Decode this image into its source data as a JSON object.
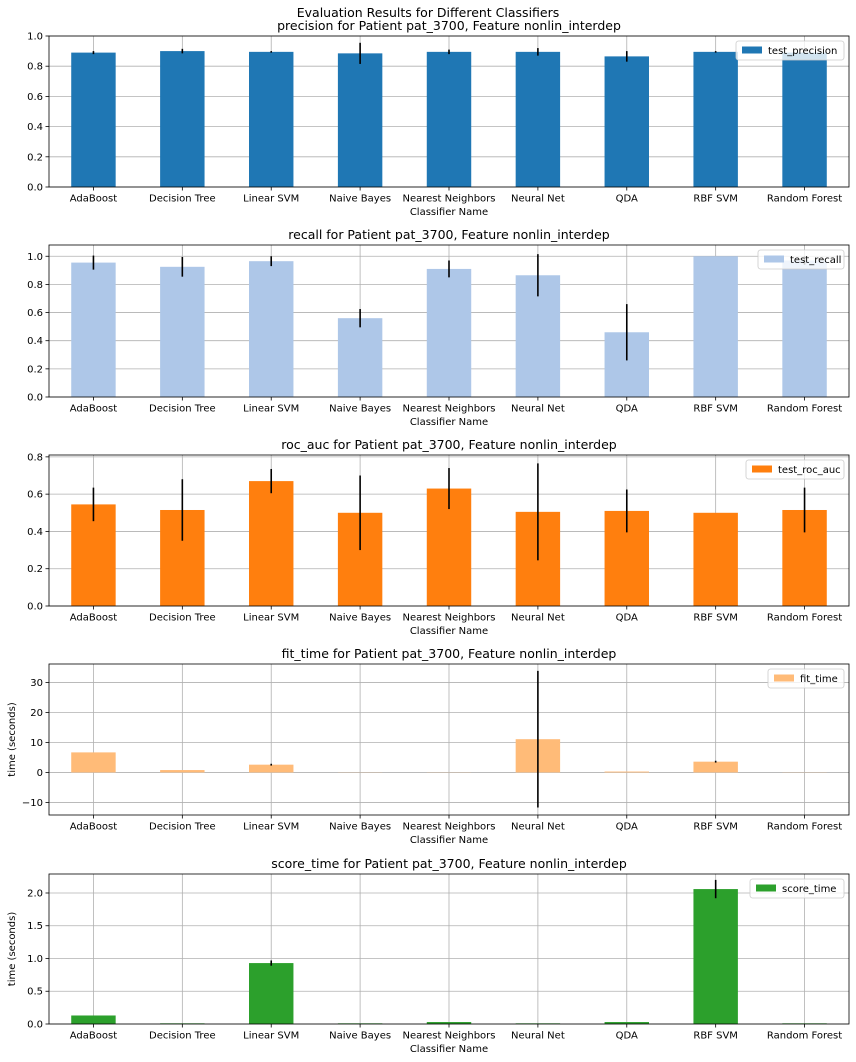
{
  "suptitle": "Evaluation Results for Different Classifiers",
  "colors": {
    "precision": "#1f77b4",
    "recall": "#aec7e8",
    "roc_auc": "#ff7f0e",
    "fit_time": "#ffbb78",
    "score_time": "#2ca02c",
    "grid": "#b0b0b0",
    "error_bar": "#000000"
  },
  "chart_data": [
    {
      "type": "bar",
      "title": "precision for Patient pat_3700, Feature nonlin_interdep",
      "xlabel": "Classifier Name",
      "ylabel": "",
      "ylim": [
        0,
        1.0
      ],
      "yticks": [
        "0.0",
        "0.2",
        "0.4",
        "0.6",
        "0.8",
        "1.0"
      ],
      "yticks_values": [
        0,
        0.2,
        0.4,
        0.6,
        0.8,
        1.0
      ],
      "grid": true,
      "legend_position": "top-right",
      "categories": [
        "AdaBoost",
        "Decision Tree",
        "Linear SVM",
        "Naive Bayes",
        "Nearest Neighbors",
        "Neural Net",
        "QDA",
        "RBF SVM",
        "Random Forest"
      ],
      "series": [
        {
          "name": "test_precision",
          "color_key": "precision",
          "values": [
            0.89,
            0.9,
            0.895,
            0.885,
            0.895,
            0.895,
            0.865,
            0.895,
            0.89
          ],
          "errors": [
            0.01,
            0.015,
            0.005,
            0.07,
            0.015,
            0.025,
            0.035,
            0.005,
            0
          ]
        }
      ]
    },
    {
      "type": "bar",
      "title": "recall for Patient pat_3700, Feature nonlin_interdep",
      "xlabel": "Classifier Name",
      "ylabel": "",
      "ylim": [
        0,
        1.08
      ],
      "yticks": [
        "0.0",
        "0.2",
        "0.4",
        "0.6",
        "0.8",
        "1.0"
      ],
      "yticks_values": [
        0,
        0.2,
        0.4,
        0.6,
        0.8,
        1.0
      ],
      "grid": true,
      "legend_position": "top-right",
      "categories": [
        "AdaBoost",
        "Decision Tree",
        "Linear SVM",
        "Naive Bayes",
        "Nearest Neighbors",
        "Neural Net",
        "QDA",
        "RBF SVM",
        "Random Forest"
      ],
      "series": [
        {
          "name": "test_recall",
          "color_key": "recall",
          "values": [
            0.955,
            0.925,
            0.965,
            0.56,
            0.91,
            0.865,
            0.46,
            1.0,
            0.97
          ],
          "errors": [
            0.05,
            0.07,
            0.035,
            0.065,
            0.06,
            0.15,
            0.2,
            0,
            0.03
          ]
        }
      ]
    },
    {
      "type": "bar",
      "title": "roc_auc for Patient pat_3700, Feature nonlin_interdep",
      "xlabel": "Classifier Name",
      "ylabel": "",
      "ylim": [
        0,
        0.81
      ],
      "yticks": [
        "0.0",
        "0.2",
        "0.4",
        "0.6",
        "0.8"
      ],
      "yticks_values": [
        0,
        0.2,
        0.4,
        0.6,
        0.8
      ],
      "grid": true,
      "legend_position": "top-right",
      "categories": [
        "AdaBoost",
        "Decision Tree",
        "Linear SVM",
        "Naive Bayes",
        "Nearest Neighbors",
        "Neural Net",
        "QDA",
        "RBF SVM",
        "Random Forest"
      ],
      "series": [
        {
          "name": "test_roc_auc",
          "color_key": "roc_auc",
          "values": [
            0.545,
            0.515,
            0.67,
            0.5,
            0.63,
            0.505,
            0.51,
            0.5,
            0.515
          ],
          "errors": [
            0.09,
            0.165,
            0.065,
            0.2,
            0.11,
            0.26,
            0.115,
            0,
            0.12
          ]
        }
      ]
    },
    {
      "type": "bar",
      "title": "fit_time for Patient pat_3700, Feature nonlin_interdep",
      "xlabel": "Classifier Name",
      "ylabel": "time (seconds)",
      "ylim": [
        -14.2,
        36.2
      ],
      "yticks": [
        "−10",
        "0",
        "10",
        "20",
        "30"
      ],
      "yticks_values": [
        -10,
        0,
        10,
        20,
        30
      ],
      "grid": true,
      "legend_position": "top-right",
      "categories": [
        "AdaBoost",
        "Decision Tree",
        "Linear SVM",
        "Naive Bayes",
        "Nearest Neighbors",
        "Neural Net",
        "QDA",
        "RBF SVM",
        "Random Forest"
      ],
      "series": [
        {
          "name": "fit_time",
          "color_key": "fit_time",
          "values": [
            6.7,
            0.8,
            2.6,
            0.05,
            0.05,
            11.1,
            0.3,
            3.6,
            0.05
          ],
          "errors": [
            0,
            0,
            0.3,
            0,
            0,
            22.8,
            0,
            0.3,
            0
          ]
        }
      ]
    },
    {
      "type": "bar",
      "title": "score_time for Patient pat_3700, Feature nonlin_interdep",
      "xlabel": "Classifier Name",
      "ylabel": "time (seconds)",
      "ylim": [
        0,
        2.29
      ],
      "yticks": [
        "0.0",
        "0.5",
        "1.0",
        "1.5",
        "2.0"
      ],
      "yticks_values": [
        0,
        0.5,
        1.0,
        1.5,
        2.0
      ],
      "grid": true,
      "legend_position": "top-right",
      "categories": [
        "AdaBoost",
        "Decision Tree",
        "Linear SVM",
        "Naive Bayes",
        "Nearest Neighbors",
        "Neural Net",
        "QDA",
        "RBF SVM",
        "Random Forest"
      ],
      "series": [
        {
          "name": "score_time",
          "color_key": "score_time",
          "values": [
            0.13,
            0.01,
            0.93,
            0.01,
            0.03,
            0.01,
            0.03,
            2.06,
            0.01
          ],
          "errors": [
            0,
            0,
            0.04,
            0,
            0,
            0,
            0,
            0.14,
            0
          ]
        }
      ]
    }
  ]
}
